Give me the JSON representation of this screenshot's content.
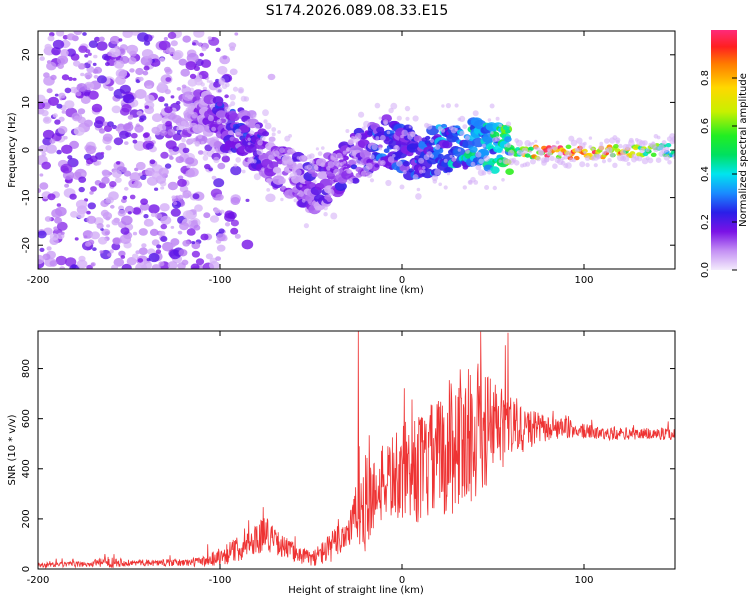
{
  "title": "S174.2026.089.08.33.E15",
  "chart_data": [
    {
      "type": "heatmap",
      "xlabel": "Height of straight line (km)",
      "ylabel": "Frequency (Hz)",
      "xlim": [
        -200,
        150
      ],
      "ylim": [
        -25,
        25
      ],
      "xticks": [
        -200,
        -100,
        0,
        100
      ],
      "yticks": [
        -20,
        -10,
        0,
        10,
        20
      ],
      "colorbar": {
        "label": "Normalized spectral amplitude",
        "range": [
          0,
          1
        ],
        "ticks": [
          "0.0",
          "0.2",
          "0.4",
          "0.6",
          "0.8"
        ],
        "tick_values": [
          0.0,
          0.2,
          0.4,
          0.6,
          0.8
        ]
      },
      "ridge": {
        "description_points_x": [
          -110,
          -100,
          -90,
          -80,
          -70,
          -60,
          -50,
          -40,
          -30,
          -20,
          -10,
          0,
          10,
          20,
          30,
          40,
          50,
          60,
          70,
          80,
          90,
          100,
          110,
          120,
          130,
          140,
          150
        ],
        "frequency_hz": [
          7,
          6,
          4,
          1,
          -3,
          -5,
          -8,
          -6,
          -3,
          0,
          2,
          0,
          -1,
          0,
          1,
          1,
          0.5,
          0,
          -0.5,
          -0.5,
          -0.5,
          -0.5,
          -0.5,
          -0.3,
          0,
          0,
          0
        ],
        "amplitude": [
          0.15,
          0.25,
          0.25,
          0.25,
          0.2,
          0.2,
          0.22,
          0.22,
          0.22,
          0.25,
          0.3,
          0.28,
          0.3,
          0.35,
          0.4,
          0.45,
          0.5,
          0.6,
          0.75,
          0.9,
          0.95,
          0.95,
          0.92,
          0.85,
          0.7,
          0.6,
          0.5
        ]
      }
    },
    {
      "type": "line",
      "xlabel": "Height of straight line (km)",
      "ylabel": "SNR (10 * v/v)",
      "xlim": [
        -200,
        150
      ],
      "ylim": [
        0,
        950
      ],
      "xticks": [
        -200,
        -100,
        0,
        100
      ],
      "yticks": [
        0,
        200,
        400,
        600,
        800
      ],
      "series": [
        {
          "name": "SNR",
          "color": "#ee3333",
          "envelope_x": [
            -200,
            -170,
            -160,
            -150,
            -120,
            -110,
            -100,
            -90,
            -80,
            -75,
            -70,
            -60,
            -50,
            -40,
            -30,
            -25,
            -20,
            -15,
            -10,
            0,
            10,
            20,
            30,
            40,
            50,
            60,
            70,
            80,
            90,
            100,
            110,
            120,
            130,
            140,
            150
          ],
          "envelope_base": [
            15,
            20,
            30,
            25,
            25,
            30,
            50,
            80,
            120,
            150,
            110,
            70,
            40,
            80,
            150,
            220,
            260,
            300,
            350,
            380,
            400,
            440,
            520,
            540,
            560,
            560,
            560,
            560,
            560,
            550,
            540,
            540,
            540,
            540,
            540
          ],
          "envelope_amp": [
            10,
            12,
            25,
            12,
            15,
            20,
            40,
            50,
            60,
            80,
            50,
            40,
            30,
            60,
            80,
            120,
            200,
            150,
            150,
            200,
            220,
            250,
            300,
            260,
            220,
            150,
            80,
            50,
            40,
            30,
            25,
            25,
            25,
            25,
            25
          ],
          "spike_x": -24,
          "spike_value": 950
        }
      ]
    }
  ]
}
